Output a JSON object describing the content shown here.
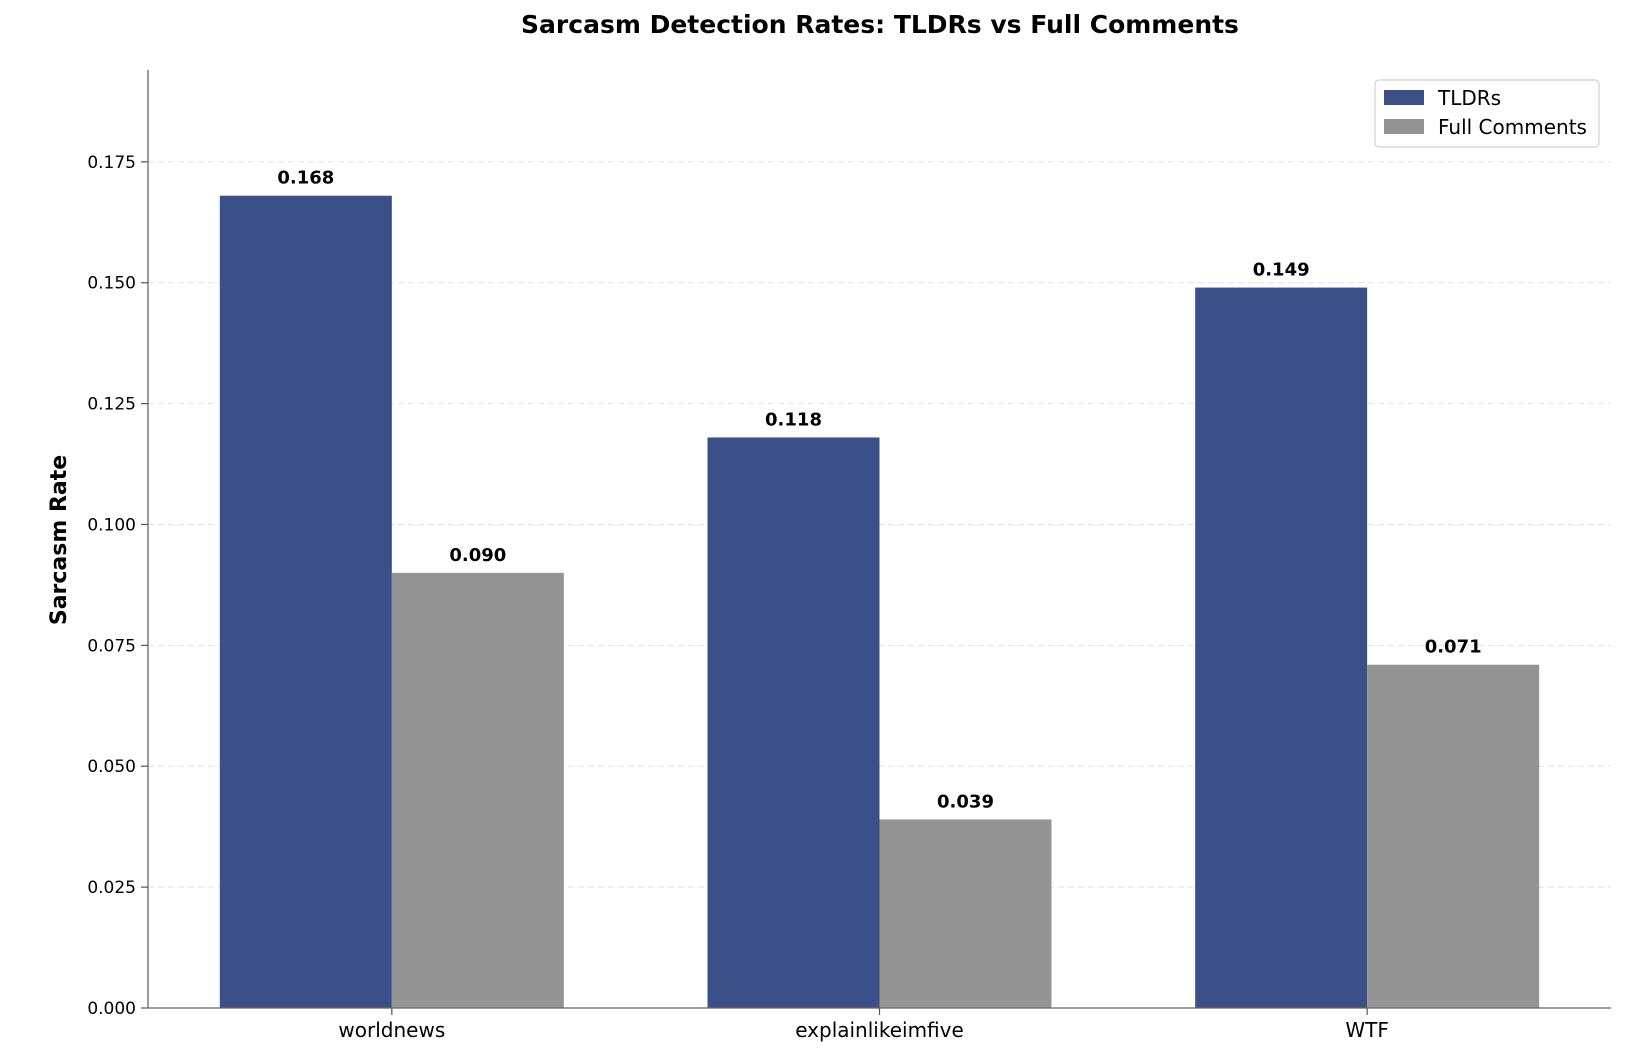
{
  "chart_data": {
    "type": "bar",
    "title": "Sarcasm Detection Rates: TLDRs vs Full Comments",
    "xlabel": "",
    "ylabel": "Sarcasm Rate",
    "categories": [
      "worldnews",
      "explainlikeimfive",
      "WTF"
    ],
    "series": [
      {
        "name": "TLDRs",
        "values": [
          0.168,
          0.118,
          0.149
        ],
        "labels": [
          "0.168",
          "0.118",
          "0.149"
        ],
        "color": "#3b5088"
      },
      {
        "name": "Full Comments",
        "values": [
          0.09,
          0.039,
          0.071
        ],
        "labels": [
          "0.090",
          "0.039",
          "0.071"
        ],
        "color": "#949494"
      }
    ],
    "ylim": [
      0,
      0.194
    ],
    "yticks": [
      0,
      0.025,
      0.05,
      0.075,
      0.1,
      0.125,
      0.15,
      0.175
    ],
    "ytick_labels": [
      "0.000",
      "0.025",
      "0.050",
      "0.075",
      "0.100",
      "0.125",
      "0.150",
      "0.175"
    ],
    "grid": true,
    "legend_position": "top-right"
  }
}
